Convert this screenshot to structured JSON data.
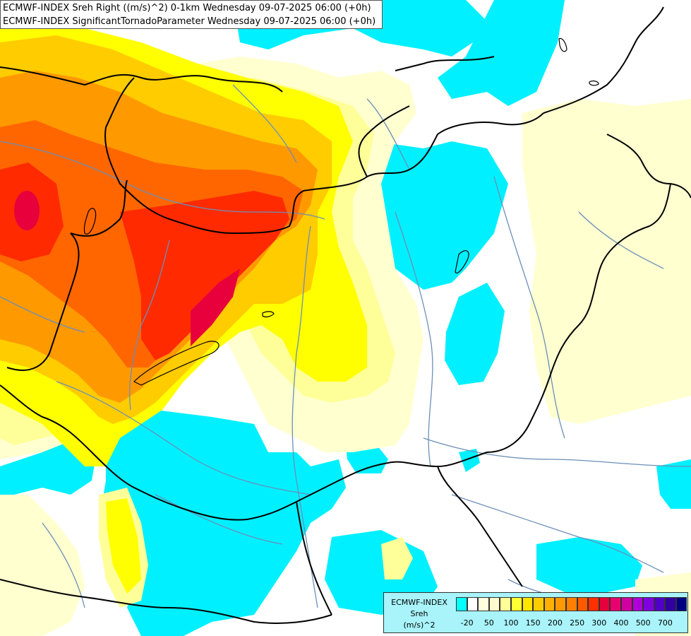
{
  "title_lines": [
    "ECMWF-INDEX Sreh Right ((m/s)^2) 0-1km Wednesday 09-07-2025 06:00 (+0h)",
    "ECMWF-INDEX SignificantTornadoParameter Wednesday 09-07-2025 06:00 (+0h)"
  ],
  "legend": {
    "title_lines": [
      "ECMWF-INDEX",
      "Sreh",
      "(m/s)^2"
    ],
    "colors": [
      "#00ffff",
      "#ffffff",
      "#ffffe0",
      "#fffacd",
      "#ffff99",
      "#ffff33",
      "#ffe600",
      "#ffcc00",
      "#ffb000",
      "#ff9900",
      "#ff7f00",
      "#ff5a00",
      "#ff3000",
      "#e8003c",
      "#e8006e",
      "#d000a0",
      "#b000d8",
      "#8000e0",
      "#5000c8",
      "#3000a0",
      "#000080"
    ],
    "ticks": [
      "-20",
      "50",
      "100",
      "150",
      "200",
      "250",
      "300",
      "400",
      "500",
      "700"
    ]
  },
  "palette": {
    "cyan": "#00f0ff",
    "white": "#ffffff",
    "pale_yellow": "#ffffd0",
    "light_yellow": "#ffff99",
    "yellow": "#ffff00",
    "gold": "#ffd700",
    "orange": "#ff9900",
    "dark_orange": "#ff6600",
    "red": "#ff2a00",
    "crimson": "#e8003c",
    "borders": "#000000",
    "rivers": "#6699cc"
  }
}
